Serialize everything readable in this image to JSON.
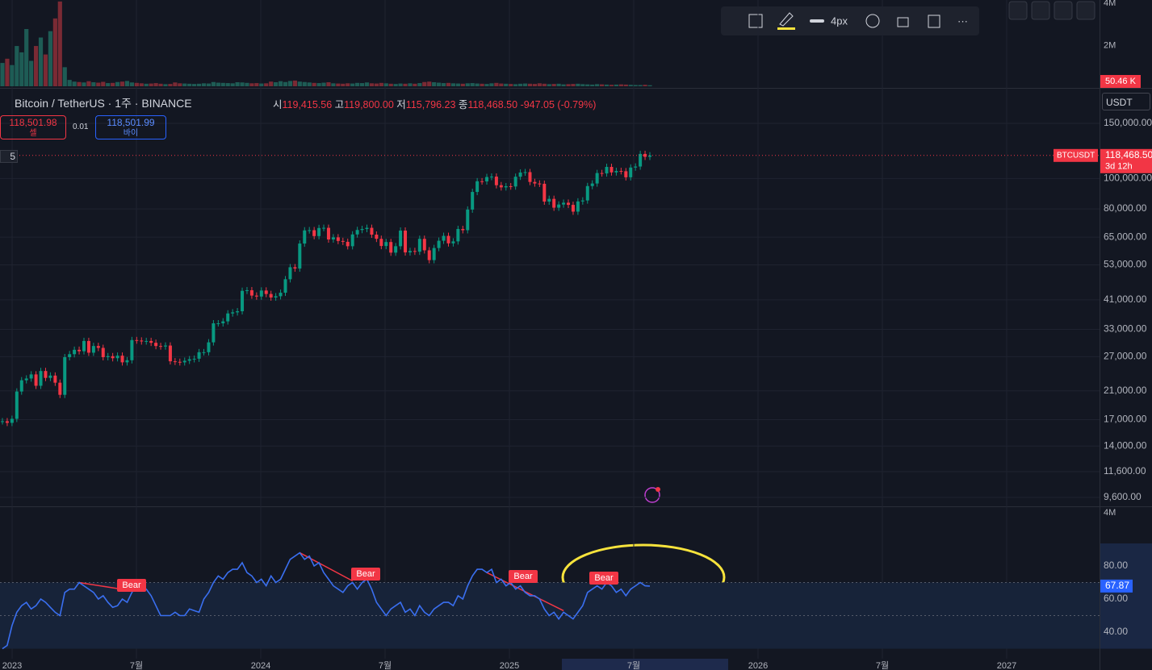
{
  "toolbar": {
    "width_label": "4px"
  },
  "legend": {
    "symbol": "Bitcoin / TetherUS · 1주 · BINANCE",
    "open_label": "시",
    "open": "119,415.56",
    "high_label": "고",
    "high": "119,800.00",
    "low_label": "저",
    "low": "115,796.23",
    "close_label": "종",
    "close": "118,468.50",
    "change": "-947.05 (-0.79%)"
  },
  "trade": {
    "sell_price": "118,501.98",
    "sell_label": "셀",
    "spread": "0.01",
    "buy_price": "118,501.99",
    "buy_label": "바이"
  },
  "indicator_count": "5",
  "currency": "USDT",
  "price_tag": {
    "symbol": "BTCUSDT",
    "countdown": "3d 12h"
  },
  "chart_data": [
    {
      "type": "candlestick",
      "up_color": "#089981",
      "down_color": "#f23645",
      "log_scale": true,
      "grid": true,
      "closes": [
        16800,
        16600,
        17100,
        20900,
        22700,
        23000,
        23700,
        21800,
        24300,
        23100,
        23500,
        22300,
        20400,
        26900,
        27500,
        28400,
        28100,
        30300,
        27800,
        29200,
        28800,
        26900,
        27100,
        26700,
        27200,
        25900,
        26300,
        30500,
        30400,
        30200,
        30300,
        29900,
        29200,
        29100,
        29300,
        26100,
        26000,
        25900,
        26200,
        26500,
        26600,
        27900,
        27900,
        30000,
        34500,
        34500,
        35000,
        37100,
        37400,
        37700,
        43800,
        44000,
        42300,
        42000,
        43900,
        42800,
        41700,
        42100,
        43200,
        47700,
        52100,
        51600,
        62000,
        68300,
        68400,
        65500,
        69500,
        69600,
        63900,
        64900,
        63200,
        62800,
        60800,
        66300,
        68500,
        69000,
        69600,
        66200,
        64200,
        60900,
        62700,
        58000,
        60800,
        68200,
        58100,
        58700,
        58400,
        64200,
        59000,
        54900,
        60000,
        63300,
        65600,
        62100,
        63000,
        69000,
        68400,
        79600,
        90600,
        98000,
        97900,
        101100,
        101400,
        95200,
        93700,
        94500,
        94300,
        101300,
        104500,
        104800,
        97500,
        96400,
        96200,
        84400,
        86100,
        80700,
        82600,
        83700,
        82400,
        78400,
        84500,
        85100,
        94600,
        96400,
        104100,
        103800,
        108900,
        104600,
        105700,
        105500,
        100900,
        108400,
        109200,
        119800,
        117300,
        118468.5
      ],
      "ylim": [
        9150,
        193500
      ],
      "yticks": [
        {
          "value": 150000,
          "label": "150,000.00"
        },
        {
          "value": 100000,
          "label": "100,000.00"
        },
        {
          "value": 80000,
          "label": "80,000.00"
        },
        {
          "value": 65000,
          "label": "65,000.00"
        },
        {
          "value": 53000,
          "label": "53,000.00"
        },
        {
          "value": 41000,
          "label": "41,000.00"
        },
        {
          "value": 33000,
          "label": "33,000.00"
        },
        {
          "value": 27000,
          "label": "27,000.00"
        },
        {
          "value": 21000,
          "label": "21,000.00"
        },
        {
          "value": 17000,
          "label": "17,000.00"
        },
        {
          "value": 14000,
          "label": "14,000.00"
        },
        {
          "value": 11600,
          "label": "11,600.00"
        },
        {
          "value": 9600,
          "label": "9,600.00"
        }
      ],
      "x_labels": [
        "2023",
        "7월",
        "2024",
        "7월",
        "2025",
        "7월",
        "2026",
        "7월",
        "2027"
      ]
    },
    {
      "type": "bar",
      "values": [
        1.1,
        1.3,
        1.0,
        1.9,
        1.6,
        2.7,
        1.2,
        1.9,
        2.3,
        1.5,
        2.6,
        3.2,
        4.0,
        0.9,
        0.3,
        0.22,
        0.2,
        0.18,
        0.24,
        0.19,
        0.17,
        0.21,
        0.15,
        0.16,
        0.2,
        0.22,
        0.25,
        0.18,
        0.16,
        0.14,
        0.12,
        0.13,
        0.15,
        0.12,
        0.1,
        0.11,
        0.18,
        0.14,
        0.13,
        0.12,
        0.11,
        0.12,
        0.14,
        0.13,
        0.2,
        0.17,
        0.16,
        0.15,
        0.14,
        0.19,
        0.18,
        0.16,
        0.14,
        0.15,
        0.13,
        0.14,
        0.22,
        0.19,
        0.24,
        0.2,
        0.25,
        0.27,
        0.22,
        0.2,
        0.18,
        0.16,
        0.15,
        0.17,
        0.19,
        0.14,
        0.13,
        0.12,
        0.14,
        0.13,
        0.16,
        0.15,
        0.18,
        0.14,
        0.13,
        0.16,
        0.14,
        0.12,
        0.11,
        0.13,
        0.12,
        0.14,
        0.12,
        0.15,
        0.2,
        0.22,
        0.19,
        0.17,
        0.15,
        0.16,
        0.14,
        0.13,
        0.12,
        0.14,
        0.15,
        0.13,
        0.12,
        0.11,
        0.14,
        0.16,
        0.13,
        0.12,
        0.11,
        0.1,
        0.12,
        0.13,
        0.12,
        0.11,
        0.14,
        0.12,
        0.1,
        0.11,
        0.12,
        0.09,
        0.1,
        0.11,
        0.12,
        0.1,
        0.09,
        0.08,
        0.1,
        0.09,
        0.08,
        0.07,
        0.08,
        0.09,
        0.08,
        0.07,
        0.06,
        0.06,
        0.07,
        0.05046
      ],
      "last_label": "50.46 K",
      "ylim": [
        0,
        4.07
      ],
      "yticks": [
        {
          "value": 4,
          "label": "4M"
        },
        {
          "value": 2,
          "label": "2M"
        }
      ],
      "pane_label": "4M"
    },
    {
      "type": "line",
      "color": "#3a6ff0",
      "values": [
        30,
        32,
        44,
        52,
        56,
        58,
        54,
        56,
        60,
        58,
        55,
        52,
        50,
        64,
        66,
        66,
        70,
        68,
        66,
        64,
        60,
        62,
        58,
        55,
        56,
        60,
        58,
        64,
        68,
        66,
        66,
        62,
        56,
        50,
        50,
        50,
        52,
        50,
        50,
        54,
        53,
        52,
        60,
        64,
        70,
        74,
        72,
        76,
        78,
        78,
        82,
        76,
        74,
        70,
        72,
        68,
        74,
        70,
        72,
        78,
        84,
        86,
        88,
        84,
        86,
        80,
        82,
        76,
        72,
        68,
        66,
        64,
        68,
        70,
        66,
        70,
        72,
        66,
        58,
        54,
        50,
        54,
        56,
        58,
        52,
        54,
        50,
        56,
        52,
        50,
        54,
        56,
        58,
        58,
        56,
        62,
        60,
        68,
        74,
        78,
        78,
        76,
        78,
        70,
        72,
        68,
        70,
        66,
        68,
        64,
        62,
        62,
        60,
        54,
        50,
        52,
        48,
        52,
        50,
        48,
        52,
        56,
        64,
        66,
        68,
        66,
        70,
        68,
        64,
        66,
        62,
        66,
        68,
        70,
        68,
        67.87
      ],
      "last_label": "67.87",
      "band": [
        30,
        70
      ],
      "midline": 50,
      "ylim": [
        29.8,
        114.1
      ],
      "yticks": [
        {
          "value": 80,
          "label": "80.00"
        },
        {
          "value": 60,
          "label": "60.00"
        },
        {
          "value": 40,
          "label": "40.00"
        }
      ],
      "signals": [
        "Bear",
        "Bear",
        "Bear",
        "Bear"
      ]
    }
  ]
}
